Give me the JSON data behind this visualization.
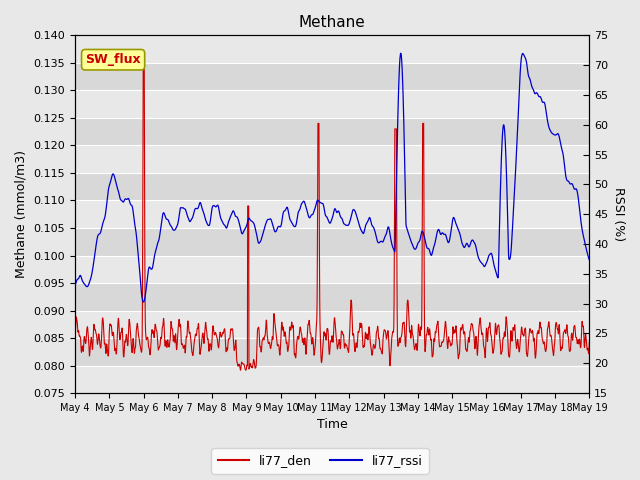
{
  "title": "Methane",
  "xlabel": "Time",
  "ylabel_left": "Methane (mmol/m3)",
  "ylabel_right": "RSSI (%)",
  "ylim_left": [
    0.075,
    0.14
  ],
  "ylim_right": [
    15,
    75
  ],
  "yticks_left": [
    0.075,
    0.08,
    0.085,
    0.09,
    0.095,
    0.1,
    0.105,
    0.11,
    0.115,
    0.12,
    0.125,
    0.13,
    0.135,
    0.14
  ],
  "yticks_right": [
    15,
    20,
    25,
    30,
    35,
    40,
    45,
    50,
    55,
    60,
    65,
    70,
    75
  ],
  "xtick_labels": [
    "May 4",
    "May 5",
    "May 6",
    "May 7",
    "May 8",
    "May 9",
    "May 10",
    "May 11",
    "May 12",
    "May 13",
    "May 14",
    "May 15",
    "May 16",
    "May 17",
    "May 18",
    "May 19"
  ],
  "line_red_label": "li77_den",
  "line_blue_label": "li77_rssi",
  "line_red_color": "#cc0000",
  "line_blue_color": "#0000cc",
  "fig_facecolor": "#e8e8e8",
  "plot_facecolor": "#d8d8d8",
  "annotation_text": "SW_flux",
  "annotation_bg": "#ffff99",
  "annotation_border": "#999900",
  "annotation_text_color": "#cc0000",
  "grid_color": "#ffffff",
  "title_fontsize": 11,
  "axis_fontsize": 9,
  "tick_fontsize": 8,
  "legend_fontsize": 9
}
